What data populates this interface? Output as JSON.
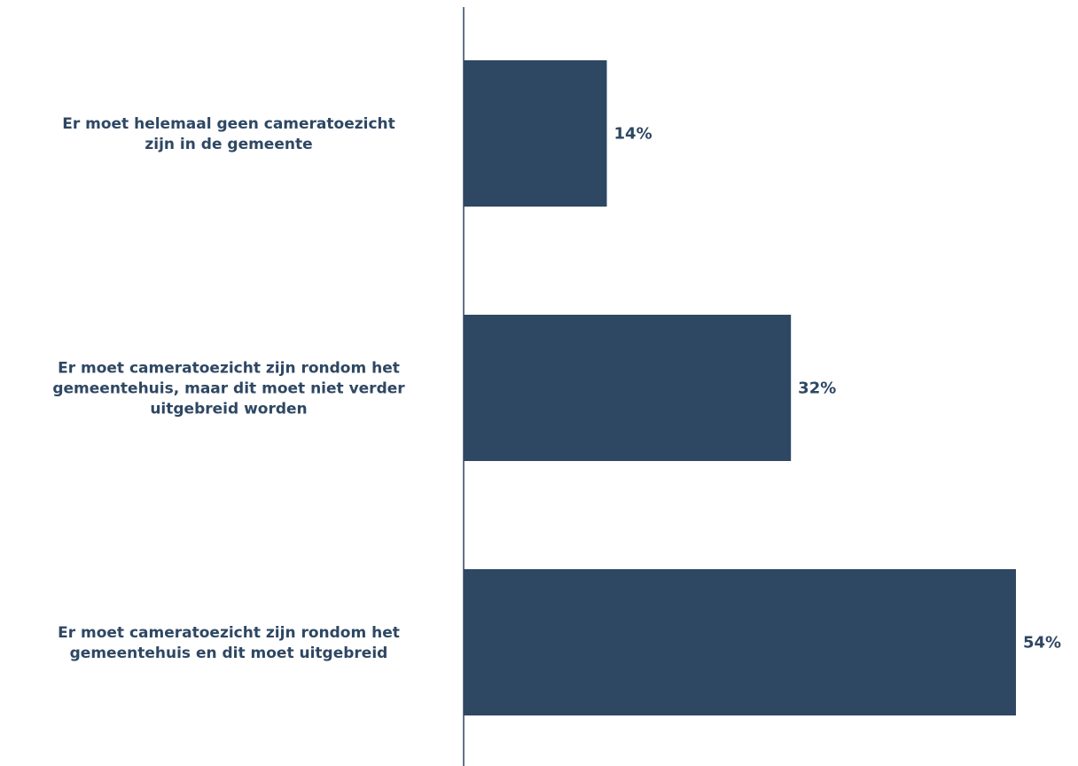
{
  "chart_data": {
    "type": "bar",
    "orientation": "horizontal",
    "categories": [
      [
        "Er moet helemaal geen cameratoezicht",
        "zijn in de gemeente"
      ],
      [
        "Er moet cameratoezicht zijn rondom het",
        "gemeentehuis, maar dit moet niet verder",
        "uitgebreid worden"
      ],
      [
        "Er moet cameratoezicht zijn rondom het",
        "gemeentehuis en dit moet uitgebreid"
      ]
    ],
    "values": [
      14,
      32,
      54
    ],
    "data_labels": [
      "14%",
      "32%",
      "54%"
    ],
    "xlim": [
      0,
      54
    ],
    "grid": false,
    "legend": "none",
    "colors": {
      "bar": "#2e4763",
      "text": "#2e4763",
      "axis": "#2e4763"
    }
  }
}
